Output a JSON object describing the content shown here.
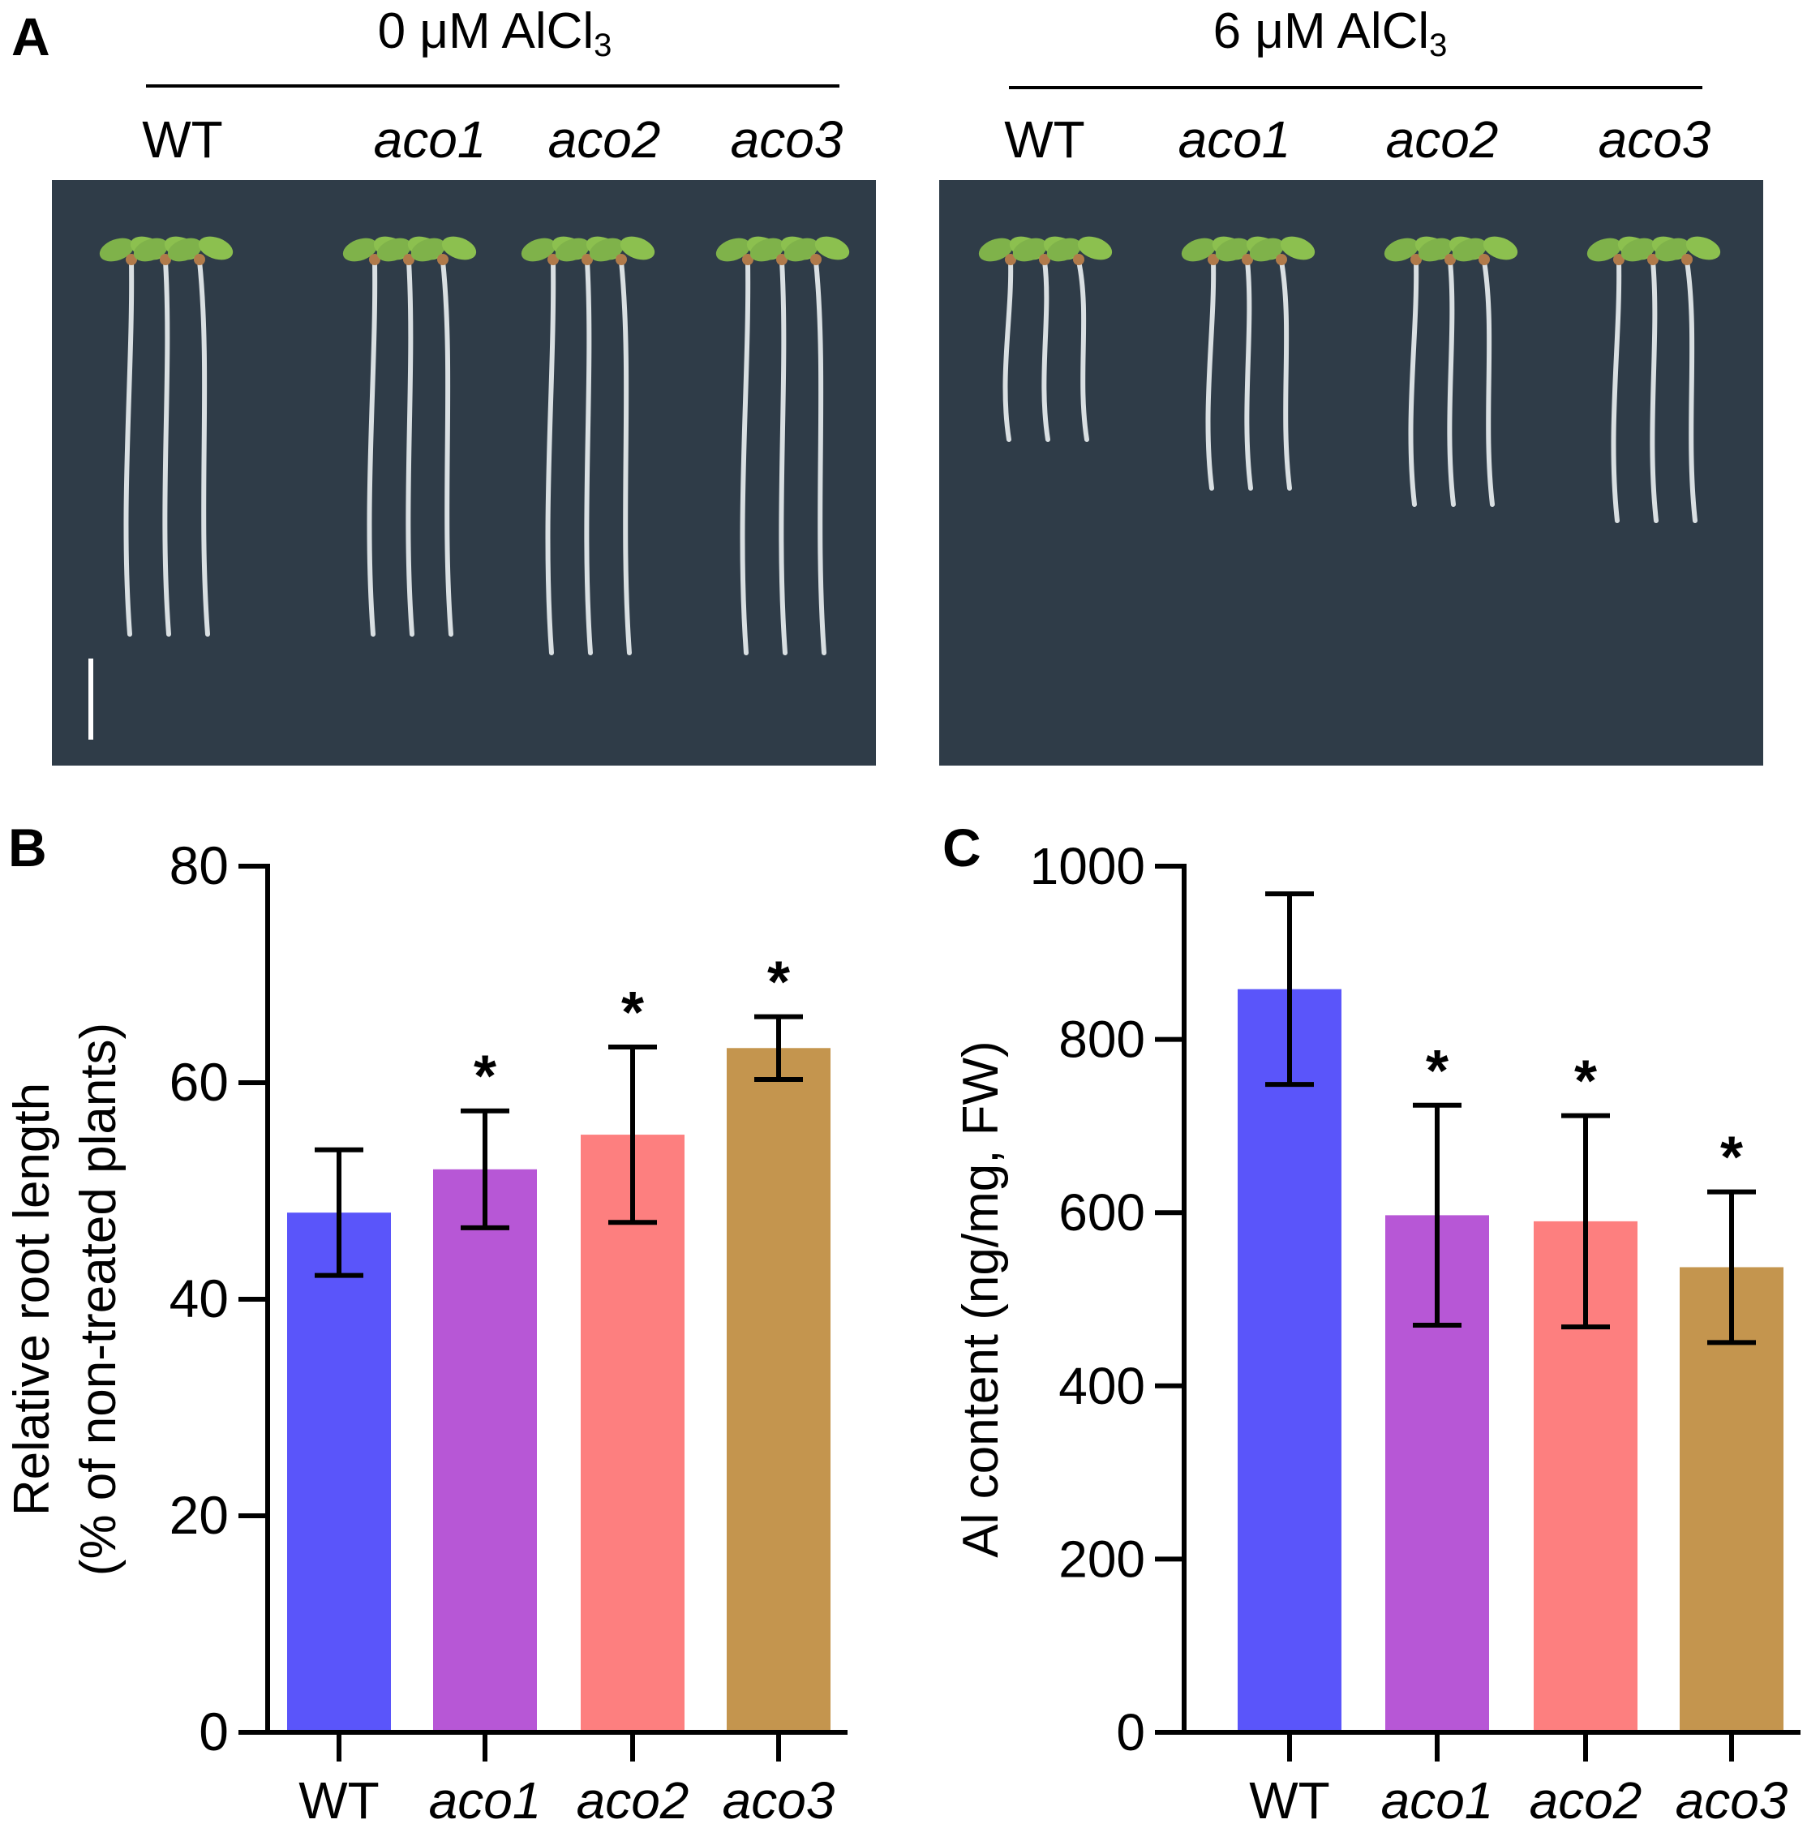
{
  "panel_a": {
    "letter": "A",
    "conditions": [
      {
        "label": "0 μM AlCl",
        "sub": "3"
      },
      {
        "label": "6 μM AlCl",
        "sub": "3"
      }
    ],
    "genotypes": [
      "WT",
      "aco1",
      "aco2",
      "aco3"
    ],
    "photo_bg": "#2f3c48",
    "relative_root_length_photo": {
      "control_seedling_lengths": [
        1.0,
        1.0,
        1.05,
        1.05
      ],
      "treated_seedling_lengths": [
        0.55,
        0.7,
        0.75,
        0.8
      ]
    }
  },
  "chart_data": [
    {
      "panel": "B",
      "type": "bar",
      "categories": [
        "WT",
        "aco1",
        "aco2",
        "aco3"
      ],
      "italic_categories": [
        false,
        true,
        true,
        true
      ],
      "values": [
        48,
        52,
        55.2,
        63.2
      ],
      "errors": [
        5.8,
        5.4,
        8.1,
        2.9
      ],
      "significance": [
        "",
        "*",
        "*",
        "*"
      ],
      "colors": [
        "#5a55fa",
        "#b757d6",
        "#fd7f7f",
        "#c4954e"
      ],
      "ylabel": "Relative root length",
      "ylabel2": "(% of non-treated plants)",
      "ylim": [
        0,
        80
      ],
      "yticks": [
        0,
        20,
        40,
        60,
        80
      ]
    },
    {
      "panel": "C",
      "type": "bar",
      "categories": [
        "WT",
        "aco1",
        "aco2",
        "aco3"
      ],
      "italic_categories": [
        false,
        true,
        true,
        true
      ],
      "values": [
        858,
        597,
        590,
        537
      ],
      "errors": [
        110,
        127,
        122,
        87
      ],
      "significance": [
        "",
        "*",
        "*",
        "*"
      ],
      "colors": [
        "#5a55fa",
        "#b757d6",
        "#fd7f7f",
        "#c4954e"
      ],
      "ylabel": "Al content (ng/mg, FW)",
      "ylim": [
        0,
        1000
      ],
      "yticks": [
        0,
        200,
        400,
        600,
        800,
        1000
      ]
    }
  ]
}
